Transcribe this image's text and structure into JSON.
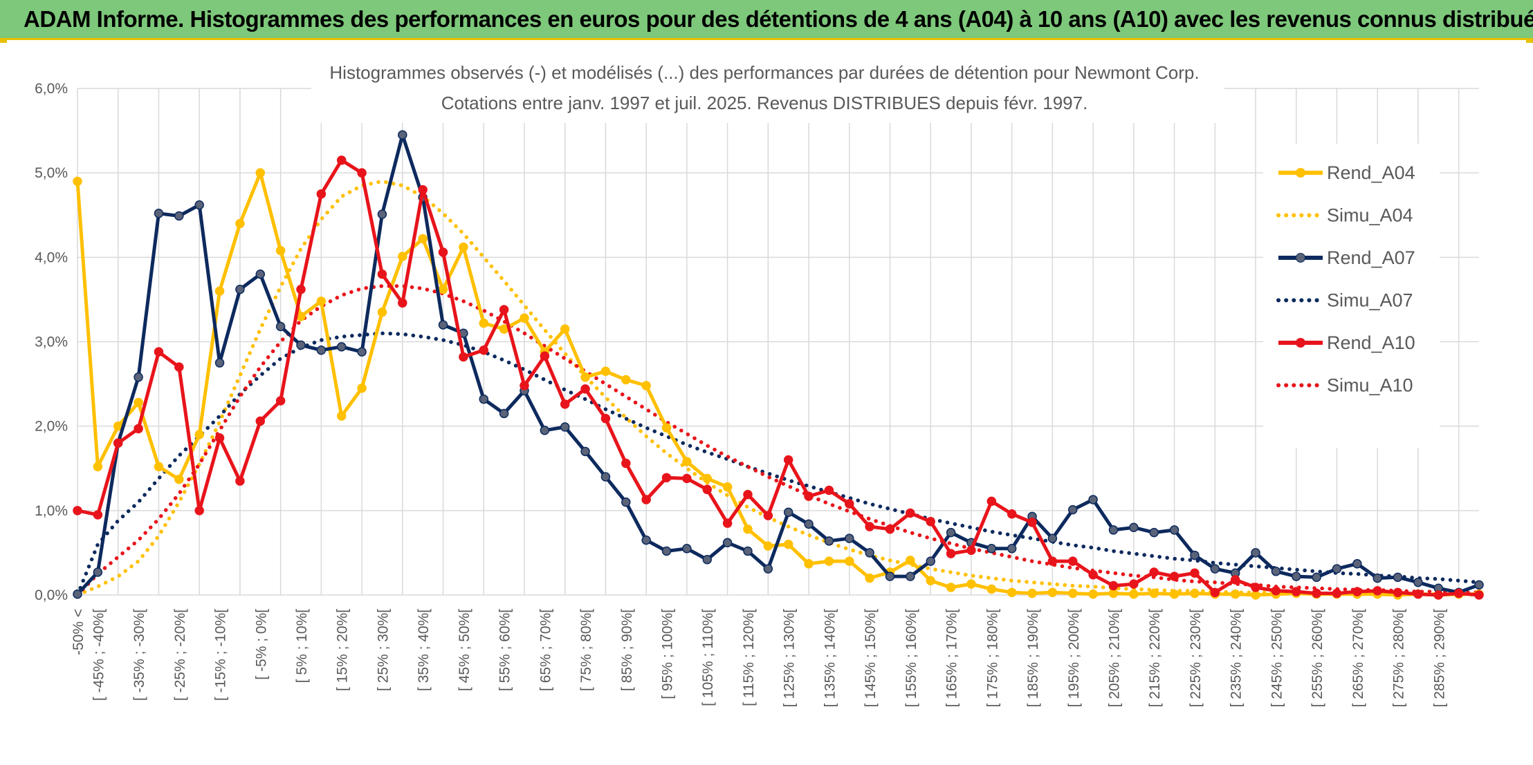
{
  "banner": {
    "title": "ADAM Informe. Histogrammes des performances en euros pour des détentions de 4 ans (A04) à 10 ans (A10) avec les revenus connus distribués"
  },
  "colors": {
    "banner_bg": "#7dc87a",
    "accent": "#e8c000",
    "a04": "#FFC000",
    "a07": "#0D2A5E",
    "a10": "#E8141B",
    "grid": "#d9d9d9"
  },
  "chart_data": {
    "type": "line",
    "title_line1": "Histogrammes observés (-) et modélisés (...) des performances par durées de détention pour Newmont Corp.",
    "title_line2": "Cotations entre janv. 1997 et juil. 2025. Revenus DISTRIBUES depuis févr. 1997.",
    "xlabel": "",
    "ylabel": "",
    "ylim": [
      0,
      6
    ],
    "yticks": [
      0,
      1,
      2,
      3,
      4,
      5,
      6
    ],
    "ytick_labels": [
      "0,0%",
      "1,0%",
      "2,0%",
      "3,0%",
      "4,0%",
      "5,0%",
      "6,0%"
    ],
    "grid": true,
    "legend_position": "top-right",
    "categories": [
      "-50% <",
      "[ -45% ; -40%[",
      "",
      "[ -35% ; -30%[",
      "",
      "[ -25% ; -20%[",
      "",
      "[ -15% ; -10%[",
      "",
      "[ -5% ; 0%[",
      "",
      "[ 5% ; 10%[",
      "",
      "[ 15% ; 20%[",
      "",
      "[ 25% ; 30%[",
      "",
      "[ 35% ; 40%[",
      "",
      "[ 45% ; 50%[",
      "",
      "[ 55% ; 60%[",
      "",
      "[ 65% ; 70%[",
      "",
      "[ 75% ; 80%[",
      "",
      "[ 85% ; 90%[",
      "",
      "[ 95% ; 100%[",
      "",
      "[ 105% ; 110%[",
      "",
      "[ 115% ; 120%[",
      "",
      "[ 125% ; 130%[",
      "",
      "[ 135% ; 140%[",
      "",
      "[ 145% ; 150%[",
      "",
      "[ 155% ; 160%[",
      "",
      "[ 165% ; 170%[",
      "",
      "[ 175% ; 180%[",
      "",
      "[ 185% ; 190%[",
      "",
      "[ 195% ; 200%[",
      "",
      "[ 205% ; 210%[",
      "",
      "[ 215% ; 220%[",
      "",
      "[ 225% ; 230%[",
      "",
      "[ 235% ; 240%[",
      "",
      "[ 245% ; 250%[",
      "",
      "[ 255% ; 260%[",
      "",
      "[ 265% ; 270%[",
      "",
      "[ 275% ; 280%[",
      "",
      "[ 285% ; 290%[",
      "",
      ""
    ],
    "series": [
      {
        "name": "Rend_A04",
        "style": "solid",
        "color": "#FFC000",
        "values": [
          4.9,
          1.52,
          2.0,
          2.28,
          1.52,
          1.37,
          1.9,
          3.6,
          4.4,
          5.0,
          4.08,
          3.3,
          3.48,
          2.12,
          2.45,
          3.35,
          4.01,
          4.22,
          3.62,
          4.12,
          3.22,
          3.15,
          3.28,
          2.88,
          3.15,
          2.58,
          2.65,
          2.55,
          2.48,
          1.98,
          1.58,
          1.38,
          1.28,
          0.78,
          0.58,
          0.6,
          0.37,
          0.4,
          0.4,
          0.2,
          0.27,
          0.41,
          0.17,
          0.09,
          0.13,
          0.07,
          0.03,
          0.02,
          0.03,
          0.02,
          0.01,
          0.02,
          0.01,
          0.02,
          0.01,
          0.02,
          0.01,
          0.01,
          0.0,
          0.01,
          0.02,
          0.01,
          0.01,
          0.01,
          0.01,
          0.0,
          0.01,
          0.0,
          0.01,
          0.01
        ]
      },
      {
        "name": "Simu_A04",
        "style": "dotted",
        "color": "#FFC000",
        "values": [
          0.0,
          0.1,
          0.22,
          0.4,
          0.7,
          1.1,
          1.55,
          2.05,
          2.6,
          3.15,
          3.65,
          4.1,
          4.45,
          4.72,
          4.85,
          4.9,
          4.85,
          4.72,
          4.52,
          4.28,
          4.0,
          3.72,
          3.43,
          3.14,
          2.86,
          2.59,
          2.34,
          2.1,
          1.88,
          1.68,
          1.5,
          1.33,
          1.18,
          1.04,
          0.92,
          0.81,
          0.71,
          0.62,
          0.54,
          0.47,
          0.41,
          0.36,
          0.31,
          0.27,
          0.23,
          0.2,
          0.17,
          0.15,
          0.13,
          0.11,
          0.1,
          0.08,
          0.07,
          0.06,
          0.05,
          0.05,
          0.04,
          0.03,
          0.03,
          0.03,
          0.02,
          0.02,
          0.02,
          0.01,
          0.01,
          0.01,
          0.01,
          0.01,
          0.01,
          0.0
        ]
      },
      {
        "name": "Rend_A07",
        "style": "solid",
        "color": "#0D2A5E",
        "values": [
          0.01,
          0.27,
          1.8,
          2.58,
          4.52,
          4.49,
          4.62,
          2.75,
          3.62,
          3.8,
          3.18,
          2.96,
          2.9,
          2.94,
          2.88,
          4.51,
          5.45,
          4.71,
          3.2,
          3.1,
          2.32,
          2.15,
          2.42,
          1.95,
          1.99,
          1.7,
          1.4,
          1.1,
          0.65,
          0.52,
          0.55,
          0.42,
          0.62,
          0.52,
          0.31,
          0.98,
          0.84,
          0.64,
          0.67,
          0.5,
          0.22,
          0.22,
          0.4,
          0.74,
          0.62,
          0.55,
          0.55,
          0.93,
          0.67,
          1.01,
          1.13,
          0.77,
          0.8,
          0.74,
          0.77,
          0.47,
          0.31,
          0.26,
          0.5,
          0.28,
          0.22,
          0.21,
          0.31,
          0.37,
          0.2,
          0.21,
          0.15,
          0.08,
          0.03,
          0.12
        ]
      },
      {
        "name": "Simu_A07",
        "style": "dotted",
        "color": "#0D2A5E",
        "values": [
          0.0,
          0.6,
          0.88,
          1.1,
          1.38,
          1.65,
          1.88,
          2.12,
          2.38,
          2.6,
          2.8,
          2.93,
          3.02,
          3.06,
          3.08,
          3.1,
          3.09,
          3.06,
          3.02,
          2.96,
          2.88,
          2.78,
          2.67,
          2.55,
          2.43,
          2.32,
          2.2,
          2.09,
          1.98,
          1.88,
          1.78,
          1.69,
          1.61,
          1.52,
          1.44,
          1.36,
          1.29,
          1.22,
          1.15,
          1.08,
          1.02,
          0.96,
          0.9,
          0.85,
          0.8,
          0.75,
          0.71,
          0.67,
          0.63,
          0.59,
          0.56,
          0.52,
          0.49,
          0.46,
          0.43,
          0.41,
          0.38,
          0.36,
          0.34,
          0.32,
          0.3,
          0.28,
          0.26,
          0.25,
          0.23,
          0.22,
          0.2,
          0.19,
          0.17,
          0.15
        ]
      },
      {
        "name": "Rend_A10",
        "style": "solid",
        "color": "#E8141B",
        "values": [
          1.0,
          0.95,
          1.8,
          1.97,
          2.88,
          2.7,
          1.0,
          1.86,
          1.35,
          2.06,
          2.3,
          3.62,
          4.75,
          5.15,
          5.0,
          3.8,
          3.46,
          4.8,
          4.06,
          2.82,
          2.9,
          3.38,
          2.48,
          2.83,
          2.26,
          2.44,
          2.09,
          1.56,
          1.13,
          1.39,
          1.38,
          1.25,
          0.85,
          1.19,
          0.94,
          1.6,
          1.17,
          1.24,
          1.08,
          0.81,
          0.78,
          0.97,
          0.87,
          0.49,
          0.53,
          1.11,
          0.96,
          0.86,
          0.4,
          0.4,
          0.24,
          0.11,
          0.13,
          0.27,
          0.22,
          0.26,
          0.03,
          0.18,
          0.09,
          0.05,
          0.04,
          0.02,
          0.02,
          0.04,
          0.05,
          0.03,
          0.01,
          0.0,
          0.02,
          0.0
        ]
      },
      {
        "name": "Simu_A10",
        "style": "dotted",
        "color": "#E8141B",
        "values": [
          0.0,
          0.25,
          0.45,
          0.65,
          0.9,
          1.2,
          1.55,
          1.95,
          2.35,
          2.7,
          3.0,
          3.25,
          3.42,
          3.55,
          3.63,
          3.66,
          3.66,
          3.63,
          3.57,
          3.48,
          3.37,
          3.24,
          3.1,
          2.95,
          2.8,
          2.65,
          2.5,
          2.35,
          2.2,
          2.05,
          1.91,
          1.77,
          1.64,
          1.52,
          1.4,
          1.29,
          1.18,
          1.08,
          0.99,
          0.9,
          0.82,
          0.74,
          0.67,
          0.61,
          0.55,
          0.5,
          0.45,
          0.4,
          0.36,
          0.32,
          0.29,
          0.26,
          0.23,
          0.21,
          0.18,
          0.16,
          0.15,
          0.13,
          0.12,
          0.1,
          0.09,
          0.08,
          0.07,
          0.06,
          0.06,
          0.05,
          0.04,
          0.04,
          0.03,
          0.03
        ]
      }
    ]
  }
}
